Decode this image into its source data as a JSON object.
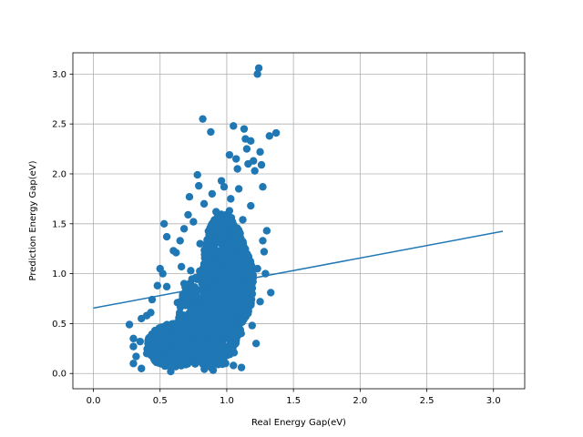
{
  "chart_data": {
    "type": "scatter",
    "title": "",
    "xlabel": "Real Energy Gap(eV)",
    "ylabel": "Prediction Energy Gap(eV)",
    "xlim": [
      -0.154,
      3.234
    ],
    "ylim": [
      -0.153,
      3.213
    ],
    "xticks": [
      0.0,
      0.5,
      1.0,
      1.5,
      2.0,
      2.5,
      3.0
    ],
    "xtick_labels": [
      "0.0",
      "0.5",
      "1.0",
      "1.5",
      "2.0",
      "2.5",
      "3.0"
    ],
    "yticks": [
      0.0,
      0.5,
      1.0,
      1.5,
      2.0,
      2.5,
      3.0
    ],
    "ytick_labels": [
      "0.0",
      "0.5",
      "1.0",
      "1.5",
      "2.0",
      "2.5",
      "3.0"
    ],
    "grid": true,
    "color": "#1f77b4",
    "scatter_points": [
      [
        0.27,
        0.49
      ],
      [
        0.3,
        0.35
      ],
      [
        0.3,
        0.27
      ],
      [
        0.3,
        0.1
      ],
      [
        0.32,
        0.17
      ],
      [
        0.35,
        0.32
      ],
      [
        0.36,
        0.55
      ],
      [
        0.36,
        0.05
      ],
      [
        0.4,
        0.58
      ],
      [
        0.4,
        0.2
      ],
      [
        0.43,
        0.61
      ],
      [
        0.44,
        0.74
      ],
      [
        0.45,
        0.4
      ],
      [
        0.48,
        0.88
      ],
      [
        0.5,
        1.05
      ],
      [
        0.52,
        1.0
      ],
      [
        0.53,
        1.5
      ],
      [
        0.55,
        1.37
      ],
      [
        0.55,
        0.87
      ],
      [
        0.56,
        0.45
      ],
      [
        0.58,
        0.02
      ],
      [
        0.6,
        1.23
      ],
      [
        0.62,
        1.21
      ],
      [
        0.63,
        0.71
      ],
      [
        0.65,
        1.33
      ],
      [
        0.66,
        1.07
      ],
      [
        0.68,
        0.9
      ],
      [
        0.68,
        1.45
      ],
      [
        0.7,
        0.35
      ],
      [
        0.71,
        1.59
      ],
      [
        0.72,
        1.77
      ],
      [
        0.73,
        1.03
      ],
      [
        0.75,
        1.52
      ],
      [
        0.76,
        0.66
      ],
      [
        0.78,
        1.99
      ],
      [
        0.79,
        1.88
      ],
      [
        0.8,
        1.3
      ],
      [
        0.82,
        2.55
      ],
      [
        0.83,
        1.7
      ],
      [
        0.85,
        0.5
      ],
      [
        0.88,
        2.42
      ],
      [
        0.89,
        1.8
      ],
      [
        0.92,
        1.62
      ],
      [
        0.95,
        0.95
      ],
      [
        0.96,
        1.93
      ],
      [
        0.98,
        1.87
      ],
      [
        1.0,
        1.1
      ],
      [
        1.02,
        2.19
      ],
      [
        1.03,
        1.75
      ],
      [
        1.05,
        2.48
      ],
      [
        1.07,
        2.15
      ],
      [
        1.08,
        2.05
      ],
      [
        1.09,
        1.85
      ],
      [
        1.11,
        0.06
      ],
      [
        1.12,
        1.54
      ],
      [
        1.13,
        2.45
      ],
      [
        1.14,
        2.35
      ],
      [
        1.15,
        2.25
      ],
      [
        1.16,
        2.1
      ],
      [
        1.18,
        2.33
      ],
      [
        1.2,
        2.13
      ],
      [
        1.21,
        2.03
      ],
      [
        1.22,
        0.3
      ],
      [
        1.23,
        3.0
      ],
      [
        1.24,
        3.06
      ],
      [
        1.25,
        2.22
      ],
      [
        1.26,
        2.09
      ],
      [
        1.27,
        1.33
      ],
      [
        1.28,
        1.22
      ],
      [
        1.3,
        1.43
      ],
      [
        1.32,
        2.38
      ],
      [
        1.33,
        0.81
      ],
      [
        1.37,
        2.41
      ],
      [
        1.18,
        1.68
      ],
      [
        1.1,
        1.4
      ],
      [
        0.9,
        1.2
      ],
      [
        1.27,
        1.87
      ],
      [
        1.19,
        0.48
      ],
      [
        1.05,
        0.08
      ],
      [
        0.87,
        0.1
      ],
      [
        0.74,
        0.25
      ],
      [
        0.66,
        0.12
      ],
      [
        0.62,
        0.45
      ],
      [
        0.97,
        0.6
      ],
      [
        1.14,
        0.85
      ],
      [
        1.23,
        1.05
      ],
      [
        1.25,
        0.72
      ],
      [
        1.29,
        1.0
      ],
      [
        0.94,
        1.5
      ],
      [
        1.02,
        1.63
      ]
    ],
    "cluster_cores": [
      {
        "cx": 0.88,
        "cy": 0.55,
        "rx": 0.24,
        "ry": 0.52
      },
      {
        "cx": 0.98,
        "cy": 1.1,
        "rx": 0.16,
        "ry": 0.5
      },
      {
        "cx": 0.6,
        "cy": 0.28,
        "rx": 0.2,
        "ry": 0.22
      },
      {
        "cx": 1.08,
        "cy": 0.9,
        "rx": 0.12,
        "ry": 0.4
      }
    ],
    "cluster_count": 2600,
    "fit_line": {
      "x": [
        0.0,
        3.07
      ],
      "y": [
        0.655,
        1.425
      ]
    }
  }
}
